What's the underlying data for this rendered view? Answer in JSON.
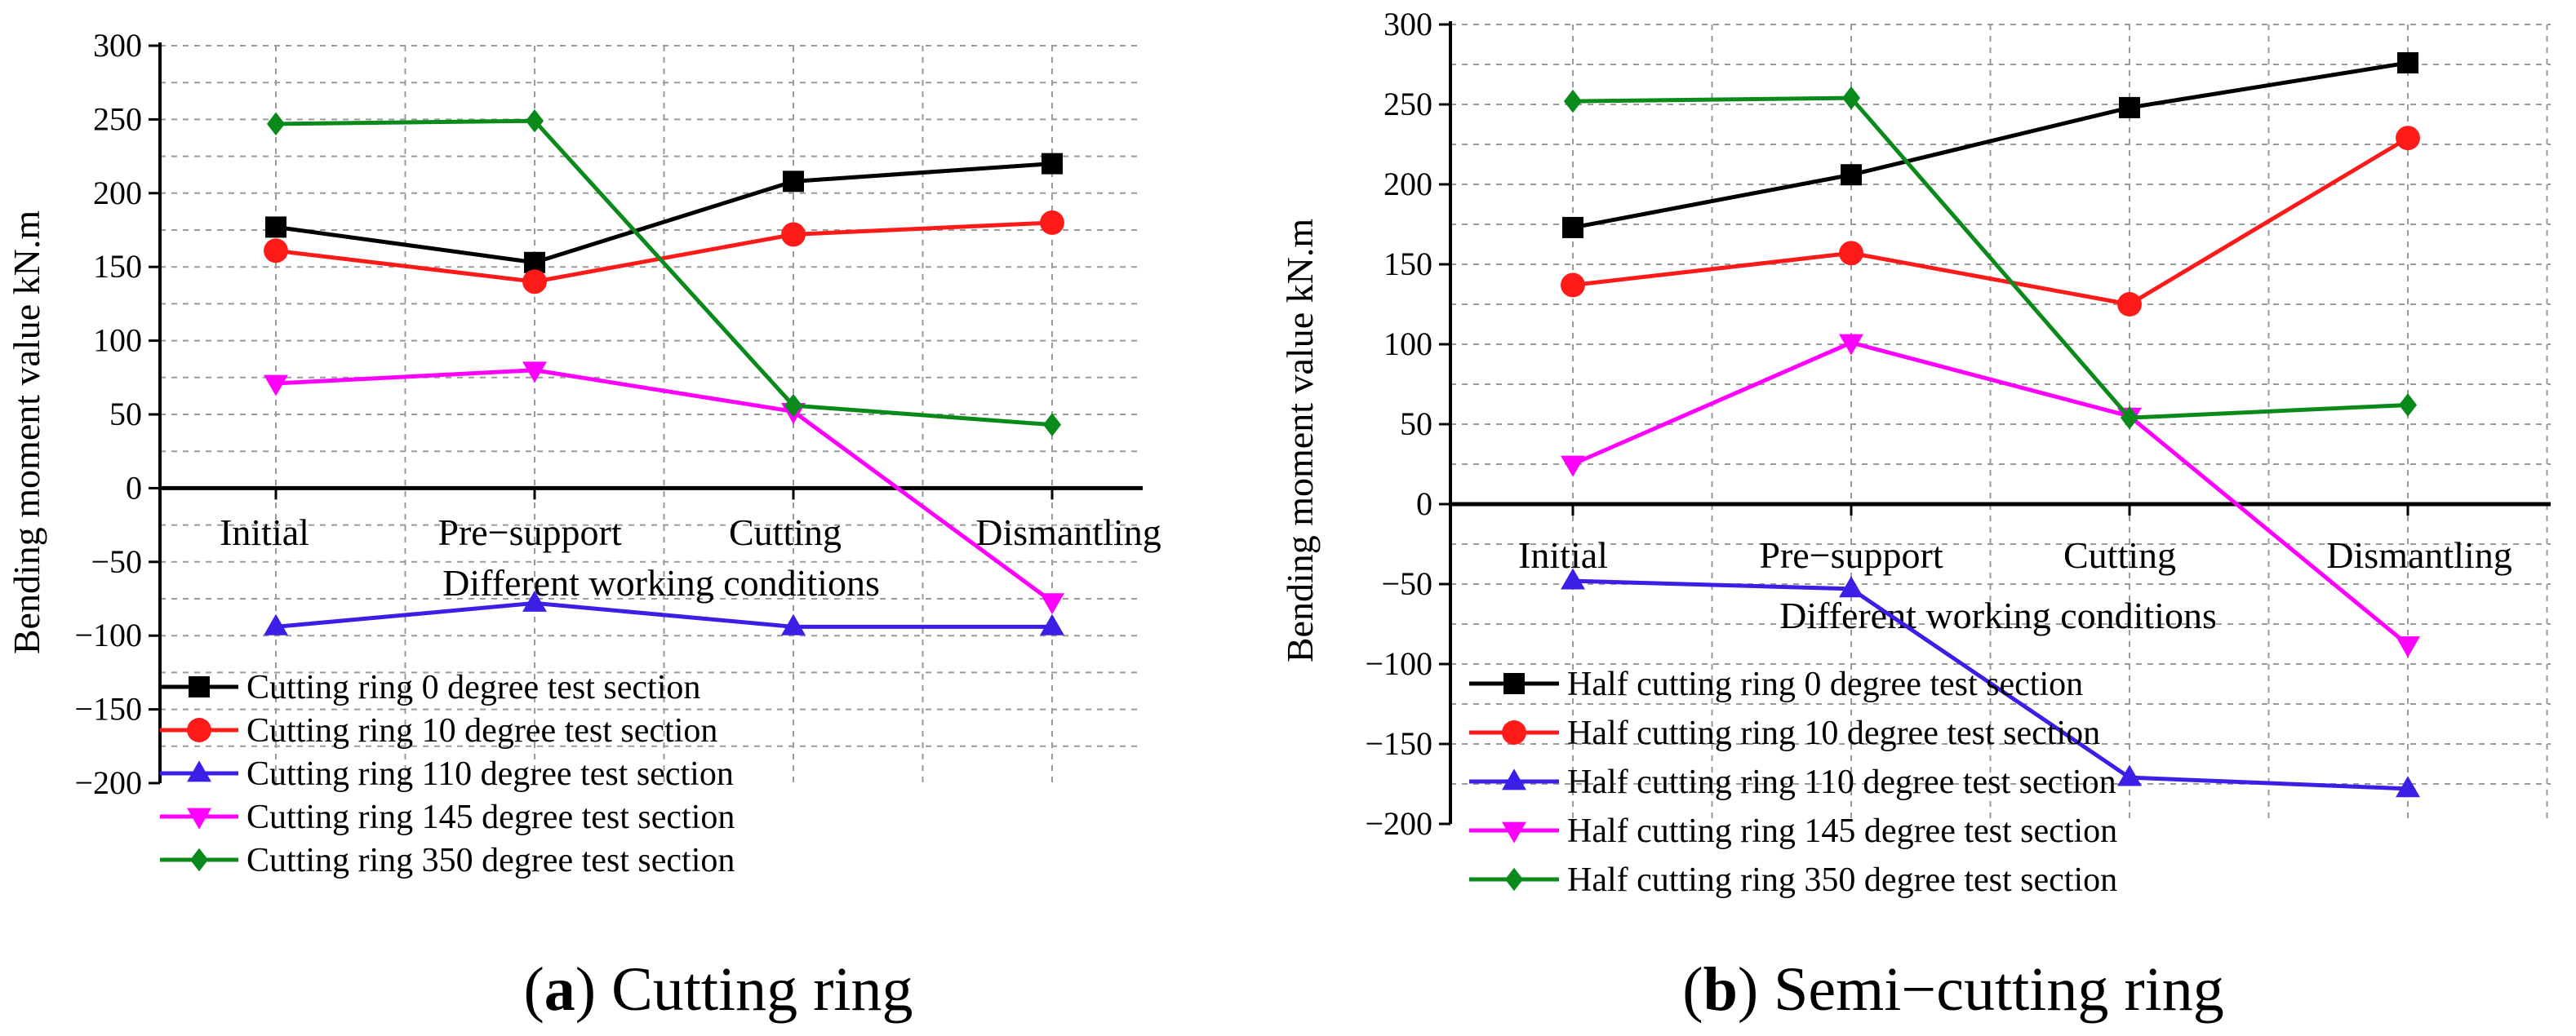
{
  "chart_data": [
    {
      "id": "a",
      "type": "line",
      "caption_letter": "a",
      "caption_text": "Cutting ring",
      "categories": [
        "Initial",
        "Pre−support",
        "Cutting",
        "Dismantling"
      ],
      "xlabel": "Different working conditions",
      "ylabel": "Bending moment value kN.m",
      "ylim": [
        -200,
        300
      ],
      "ytick_step": 50,
      "grid": true,
      "legend_position": "bottom-left",
      "series": [
        {
          "name": "Cutting ring 0 degree test section",
          "color": "#000000",
          "marker": "square",
          "values": [
            177,
            153,
            208,
            220
          ]
        },
        {
          "name": "Cutting ring 10 degree test section",
          "color": "#ff1a1a",
          "marker": "circle",
          "values": [
            161,
            140,
            172,
            180
          ]
        },
        {
          "name": "Cutting ring 110 degree test section",
          "color": "#3b1fe6",
          "marker": "triangle-up",
          "values": [
            -94,
            -78,
            -94,
            -94
          ]
        },
        {
          "name": "Cutting ring 145 degree test section",
          "color": "#ff00ff",
          "marker": "triangle-down",
          "values": [
            71,
            80,
            52,
            -77
          ]
        },
        {
          "name": "Cutting ring 350 degree test section",
          "color": "#0a8a1a",
          "marker": "diamond",
          "values": [
            247,
            249,
            56,
            43
          ]
        }
      ]
    },
    {
      "id": "b",
      "type": "line",
      "caption_letter": "b",
      "caption_text": "Semi−cutting ring",
      "categories": [
        "Initial",
        "Pre−support",
        "Cutting",
        "Dismantling"
      ],
      "xlabel": "Different working conditions",
      "ylabel": "Bending moment value kN.m",
      "ylim": [
        -200,
        300
      ],
      "ytick_step": 50,
      "grid": true,
      "legend_position": "bottom-left",
      "series": [
        {
          "name": "Half cutting ring 0 degree test section",
          "color": "#000000",
          "marker": "square",
          "values": [
            173,
            206,
            248,
            276
          ]
        },
        {
          "name": "Half cutting ring 10 degree test section",
          "color": "#ff1a1a",
          "marker": "circle",
          "values": [
            137,
            157,
            125,
            229
          ]
        },
        {
          "name": "Half cutting ring 110 degree test section",
          "color": "#3b1fe6",
          "marker": "triangle-up",
          "values": [
            -48,
            -53,
            -171,
            -178
          ]
        },
        {
          "name": "Half cutting ring 145 degree test section",
          "color": "#ff00ff",
          "marker": "triangle-down",
          "values": [
            25,
            101,
            55,
            -88
          ]
        },
        {
          "name": "Half cutting ring 350 degree test section",
          "color": "#0a8a1a",
          "marker": "diamond",
          "values": [
            252,
            254,
            54,
            62
          ]
        }
      ]
    }
  ]
}
